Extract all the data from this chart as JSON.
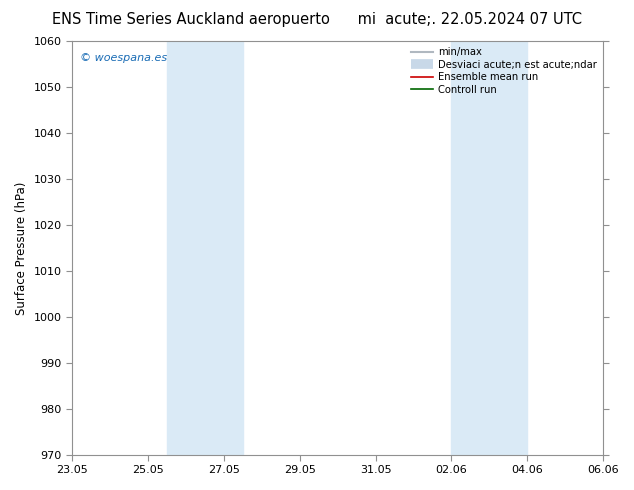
{
  "title": "ENS Time Series Auckland aeropuerto      mi  acute;. 22.05.2024 07 UTC",
  "ylabel": "Surface Pressure (hPa)",
  "ylim": [
    970,
    1060
  ],
  "yticks": [
    970,
    980,
    990,
    1000,
    1010,
    1020,
    1030,
    1040,
    1050,
    1060
  ],
  "x_tick_labels": [
    "23.05",
    "25.05",
    "27.05",
    "29.05",
    "31.05",
    "02.06",
    "04.06",
    "06.06"
  ],
  "x_tick_positions": [
    0,
    2,
    4,
    6,
    8,
    10,
    12,
    14
  ],
  "xlim": [
    0,
    14
  ],
  "shaded_regions": [
    {
      "x_start": 2.5,
      "x_end": 4.5
    },
    {
      "x_start": 10.0,
      "x_end": 12.0
    }
  ],
  "shaded_color": "#daeaf6",
  "background_color": "#ffffff",
  "watermark_text": "© woespana.es",
  "watermark_color": "#1a6cb5",
  "legend_items": [
    {
      "label": "min/max",
      "color": "#b0b8c0",
      "lw": 1.5
    },
    {
      "label": "Desviaci acute;n est acute;ndar",
      "color": "#c8d8e8",
      "lw": 7
    },
    {
      "label": "Ensemble mean run",
      "color": "#cc0000",
      "lw": 1.2
    },
    {
      "label": "Controll run",
      "color": "#006600",
      "lw": 1.2
    }
  ],
  "spine_color": "#909090",
  "title_fontsize": 10.5,
  "axis_label_fontsize": 8.5,
  "tick_fontsize": 8
}
